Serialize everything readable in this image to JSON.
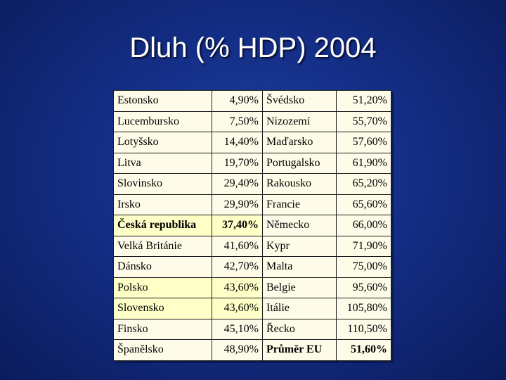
{
  "title": "Dluh (% HDP) 2004",
  "rows": [
    {
      "c1": "Estonsko",
      "v1": "4,90%",
      "c2": "Švédsko",
      "v2": "51,20%"
    },
    {
      "c1": "Lucembursko",
      "v1": "7,50%",
      "c2": "Nizozemí",
      "v2": "55,70%"
    },
    {
      "c1": "Lotyšsko",
      "v1": "14,40%",
      "c2": "Maďarsko",
      "v2": "57,60%"
    },
    {
      "c1": "Litva",
      "v1": "19,70%",
      "c2": "Portugalsko",
      "v2": "61,90%"
    },
    {
      "c1": "Slovinsko",
      "v1": "29,40%",
      "c2": "Rakousko",
      "v2": "65,20%"
    },
    {
      "c1": "Irsko",
      "v1": "29,90%",
      "c2": "Francie",
      "v2": "65,60%"
    },
    {
      "c1": "Česká republika",
      "v1": "37,40%",
      "c2": "Německo",
      "v2": "66,00%"
    },
    {
      "c1": "Velká Británie",
      "v1": "41,60%",
      "c2": "Kypr",
      "v2": "71,90%"
    },
    {
      "c1": "Dánsko",
      "v1": "42,70%",
      "c2": "Malta",
      "v2": "75,00%"
    },
    {
      "c1": "Polsko",
      "v1": "43,60%",
      "c2": "Belgie",
      "v2": "95,60%"
    },
    {
      "c1": "Slovensko",
      "v1": "43,60%",
      "c2": "Itálie",
      "v2": "105,80%"
    },
    {
      "c1": "Finsko",
      "v1": "45,10%",
      "c2": "Řecko",
      "v2": "110,50%"
    },
    {
      "c1": "Španělsko",
      "v1": "48,90%",
      "c2": "Průměr EU",
      "v2": "51,60%"
    }
  ],
  "highlight_color": "#ffffc8",
  "background_color": "#142e86"
}
